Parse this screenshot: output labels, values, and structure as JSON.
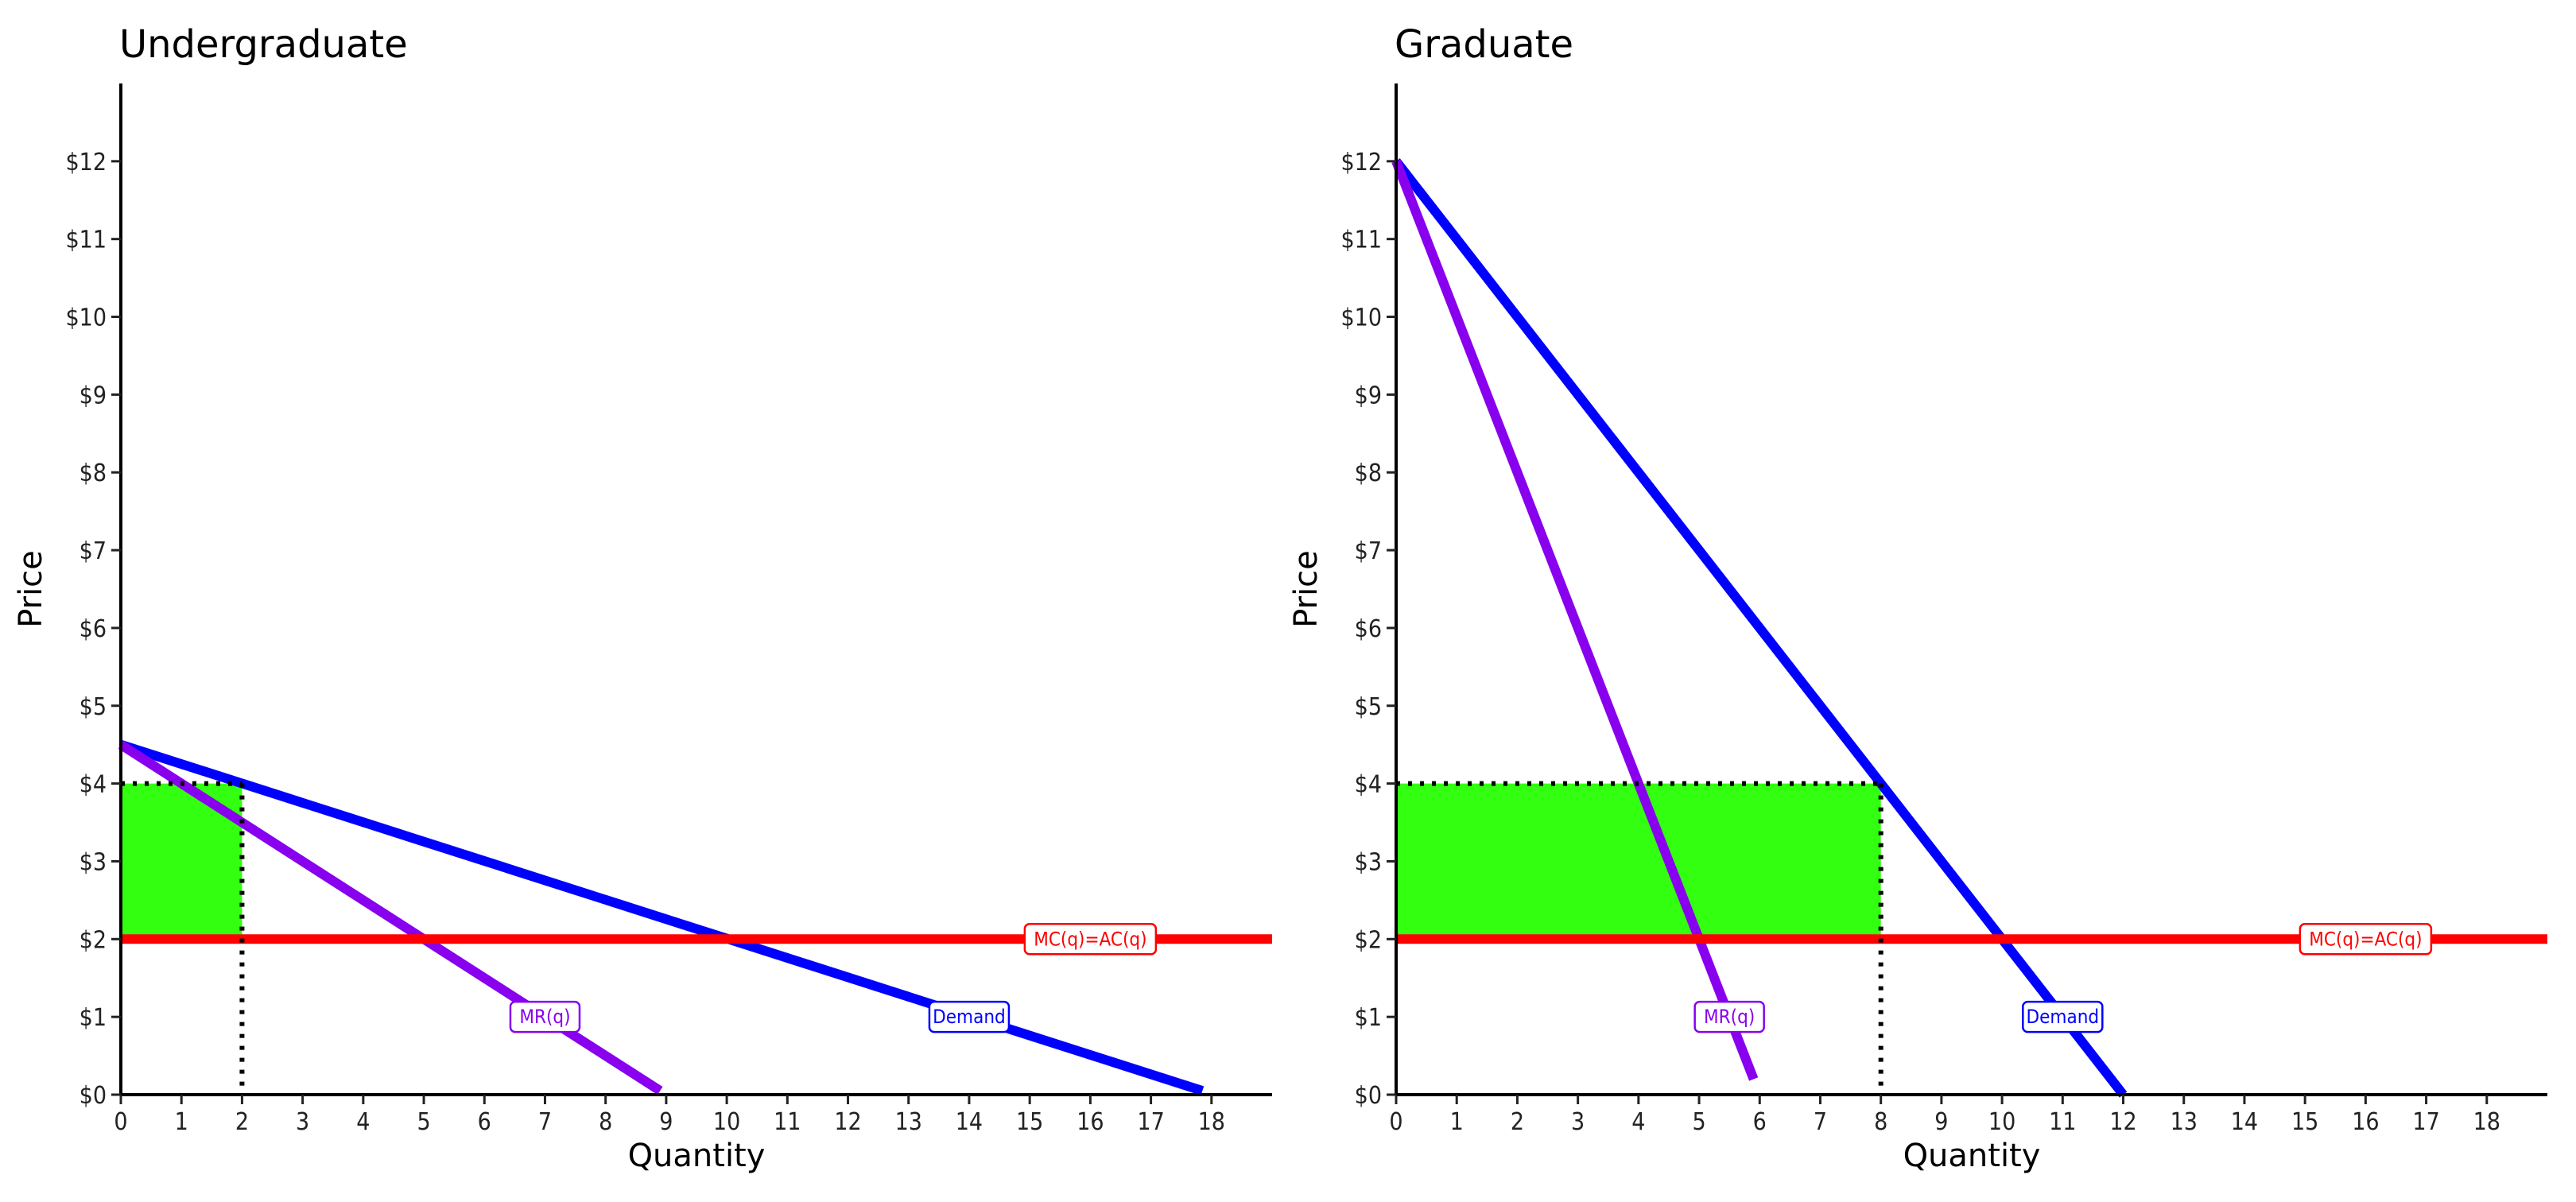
{
  "chart_data": [
    {
      "type": "line",
      "title": "Undergraduate",
      "xlabel": "Quantity",
      "ylabel": "Price",
      "xlim": [
        0,
        19
      ],
      "ylim": [
        0,
        13
      ],
      "x_ticks": [
        0,
        1,
        2,
        3,
        4,
        5,
        6,
        7,
        8,
        9,
        10,
        11,
        12,
        13,
        14,
        15,
        16,
        17,
        18
      ],
      "y_ticks": [
        0,
        1,
        2,
        3,
        4,
        5,
        6,
        7,
        8,
        9,
        10,
        11,
        12
      ],
      "y_tick_labels": [
        "$0",
        "$1",
        "$2",
        "$3",
        "$4",
        "$5",
        "$6",
        "$7",
        "$8",
        "$9",
        "$10",
        "$11",
        "$12"
      ],
      "grid": false,
      "series": [
        {
          "name": "Demand",
          "color": "#0000ff",
          "x": [
            0,
            17.85
          ],
          "y": [
            4.5,
            0.05
          ]
        },
        {
          "name": "MR(q)",
          "color": "#8800ee",
          "x": [
            0,
            8.9
          ],
          "y": [
            4.5,
            0.05
          ]
        },
        {
          "name": "MC(q)=AC(q)",
          "color": "#ff0000",
          "x": [
            0,
            19
          ],
          "y": [
            2,
            2
          ]
        }
      ],
      "labels": [
        {
          "text": "Demand",
          "series": "Demand",
          "x": 14,
          "y": 1
        },
        {
          "text": "MR(q)",
          "series": "MR(q)",
          "x": 7,
          "y": 1
        },
        {
          "text": "MC(q)=AC(q)",
          "series": "MC(q)=AC(q)",
          "x": 16,
          "y": 2
        }
      ],
      "profit_area": {
        "x": [
          0,
          2
        ],
        "y": [
          2,
          4
        ],
        "color": "#33ff11"
      },
      "optimum": {
        "q": 2,
        "p": 4
      }
    },
    {
      "type": "line",
      "title": "Graduate",
      "xlabel": "Quantity",
      "ylabel": "Price",
      "xlim": [
        0,
        19
      ],
      "ylim": [
        0,
        13
      ],
      "x_ticks": [
        0,
        1,
        2,
        3,
        4,
        5,
        6,
        7,
        8,
        9,
        10,
        11,
        12,
        13,
        14,
        15,
        16,
        17,
        18
      ],
      "y_ticks": [
        0,
        1,
        2,
        3,
        4,
        5,
        6,
        7,
        8,
        9,
        10,
        11,
        12
      ],
      "y_tick_labels": [
        "$0",
        "$1",
        "$2",
        "$3",
        "$4",
        "$5",
        "$6",
        "$7",
        "$8",
        "$9",
        "$10",
        "$11",
        "$12"
      ],
      "grid": false,
      "series": [
        {
          "name": "Demand",
          "color": "#0000ff",
          "x": [
            0,
            12
          ],
          "y": [
            12,
            0
          ]
        },
        {
          "name": "MR(q)",
          "color": "#8800ee",
          "x": [
            0,
            5.9
          ],
          "y": [
            12,
            0.2
          ]
        },
        {
          "name": "MC(q)=AC(q)",
          "color": "#ff0000",
          "x": [
            0,
            19
          ],
          "y": [
            2,
            2
          ]
        }
      ],
      "labels": [
        {
          "text": "Demand",
          "series": "Demand",
          "x": 11,
          "y": 1
        },
        {
          "text": "MR(q)",
          "series": "MR(q)",
          "x": 5.5,
          "y": 1
        },
        {
          "text": "MC(q)=AC(q)",
          "series": "MC(q)=AC(q)",
          "x": 16,
          "y": 2
        }
      ],
      "profit_area": {
        "x": [
          0,
          8
        ],
        "y": [
          2,
          4
        ],
        "color": "#33ff11"
      },
      "optimum": {
        "q": 8,
        "p": 4
      }
    }
  ]
}
